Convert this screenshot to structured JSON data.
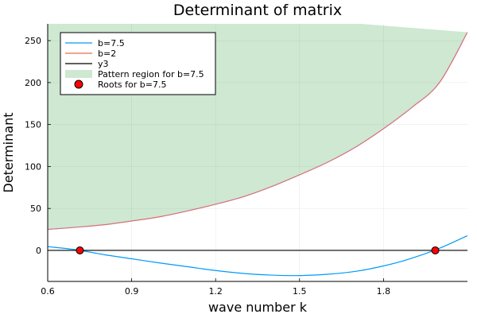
{
  "chart_data": {
    "type": "line",
    "title": "Determinant of matrix",
    "xlabel": "wave number k",
    "ylabel": "Determinant",
    "xlim": [
      0.6,
      2.1
    ],
    "ylim": [
      -37,
      270
    ],
    "xticks": [
      0.6,
      0.9,
      1.2,
      1.5,
      1.8
    ],
    "xtick_labels": [
      "0.6",
      "0.9",
      "1.2",
      "1.5",
      "1.8"
    ],
    "yticks": [
      0,
      50,
      100,
      150,
      200,
      250
    ],
    "ytick_labels": [
      "0",
      "50",
      "100",
      "150",
      "200",
      "250"
    ],
    "grid": true,
    "legend_position": "top-left",
    "series": [
      {
        "name": "b=7.5",
        "color": "#009af9",
        "x": [
          0.6,
          0.7,
          0.8,
          0.9,
          1.0,
          1.1,
          1.2,
          1.3,
          1.4,
          1.5,
          1.6,
          1.7,
          1.8,
          1.9,
          2.0,
          2.1
        ],
        "y": [
          4.5,
          0.8,
          -5,
          -10,
          -15,
          -19.5,
          -24,
          -27.5,
          -29.5,
          -30,
          -28.5,
          -25,
          -18.5,
          -9.5,
          2.5,
          17.5
        ]
      },
      {
        "name": "b=2",
        "color": "#e26f46",
        "x": [
          0.6,
          0.7,
          0.8,
          0.9,
          1.0,
          1.1,
          1.2,
          1.3,
          1.4,
          1.5,
          1.6,
          1.7,
          1.8,
          1.9,
          2.0,
          2.1
        ],
        "y": [
          25,
          27.5,
          30.5,
          35,
          40,
          47,
          55,
          64,
          76,
          90,
          105,
          123,
          145,
          170,
          200,
          260
        ]
      },
      {
        "name": "y3",
        "color": "#000000",
        "x": [
          0.6,
          2.1
        ],
        "y": [
          0,
          0
        ]
      }
    ],
    "fill": {
      "name": "Pattern region for b=7.5",
      "color": "#3da44d",
      "opacity": 0.25,
      "lower_series": "b=2",
      "upper_x": [
        0.6,
        1.72,
        2.1
      ],
      "upper_y": [
        270,
        270,
        260
      ]
    },
    "scatter": {
      "name": "Roots for b=7.5",
      "color": "#ff0000",
      "x": [
        0.715,
        1.985
      ],
      "y": [
        0,
        0
      ]
    }
  }
}
